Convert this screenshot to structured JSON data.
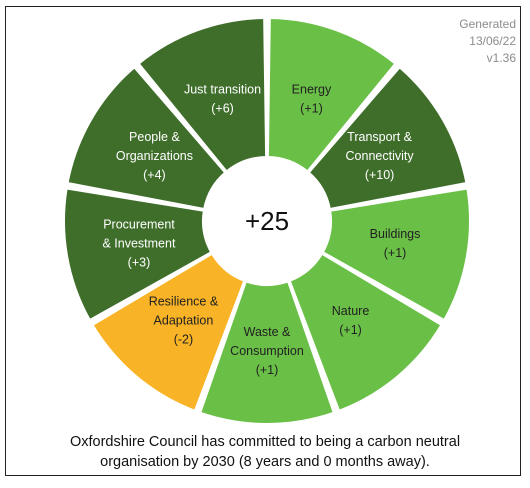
{
  "generated": {
    "label": "Generated",
    "date": "13/06/22",
    "version": "v1.36"
  },
  "wheel": {
    "total": "+25",
    "segments": [
      {
        "lines": [
          "Energy",
          "(+1)"
        ],
        "value": 1,
        "color": "#6abf47",
        "text": "dark"
      },
      {
        "lines": [
          "Transport &",
          "Connectivity",
          "(+10)"
        ],
        "value": 10,
        "color": "#3f6e2b",
        "text": "light"
      },
      {
        "lines": [
          "Buildings",
          "(+1)"
        ],
        "value": 1,
        "color": "#6abf47",
        "text": "dark"
      },
      {
        "lines": [
          "Nature",
          "(+1)"
        ],
        "value": 1,
        "color": "#6abf47",
        "text": "dark"
      },
      {
        "lines": [
          "Waste &",
          "Consumption",
          "(+1)"
        ],
        "value": 1,
        "color": "#6abf47",
        "text": "dark"
      },
      {
        "lines": [
          "Resilience &",
          "Adaptation",
          "(-2)"
        ],
        "value": -2,
        "color": "#f9b326",
        "text": "dark"
      },
      {
        "lines": [
          "Procurement",
          "& Investment",
          "(+3)"
        ],
        "value": 3,
        "color": "#3f6e2b",
        "text": "light"
      },
      {
        "lines": [
          "People &",
          "Organizations",
          "(+4)"
        ],
        "value": 4,
        "color": "#3f6e2b",
        "text": "light"
      },
      {
        "lines": [
          "Just transition",
          "(+6)"
        ],
        "value": 6,
        "color": "#3f6e2b",
        "text": "light"
      }
    ]
  },
  "footer": {
    "line1": "Oxfordshire Council has committed to being a carbon neutral",
    "line2": "organisation by 2030 (8 years and 0 months away)."
  }
}
